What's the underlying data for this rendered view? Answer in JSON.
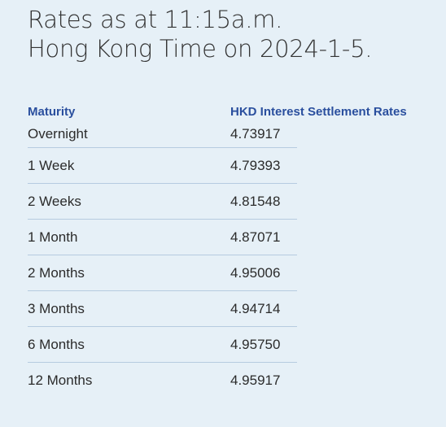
{
  "title": {
    "line1": "Rates as at 11:15a.m.",
    "line2": "Hong Kong Time on 2024-1-5."
  },
  "table": {
    "headers": {
      "maturity": "Maturity",
      "rate": "HKD Interest Settlement Rates"
    },
    "rows": [
      {
        "maturity": "Overnight",
        "rate": "4.73917"
      },
      {
        "maturity": "1 Week",
        "rate": "4.79393"
      },
      {
        "maturity": "2 Weeks",
        "rate": "4.81548"
      },
      {
        "maturity": "1 Month",
        "rate": "4.87071"
      },
      {
        "maturity": "2 Months",
        "rate": "4.95006"
      },
      {
        "maturity": "3 Months",
        "rate": "4.94714"
      },
      {
        "maturity": "6 Months",
        "rate": "4.95750"
      },
      {
        "maturity": "12 Months",
        "rate": "4.95917"
      }
    ]
  },
  "colors": {
    "background": "#e6f0f7",
    "header_text": "#2a4f9e",
    "divider": "#b6cbe0"
  }
}
